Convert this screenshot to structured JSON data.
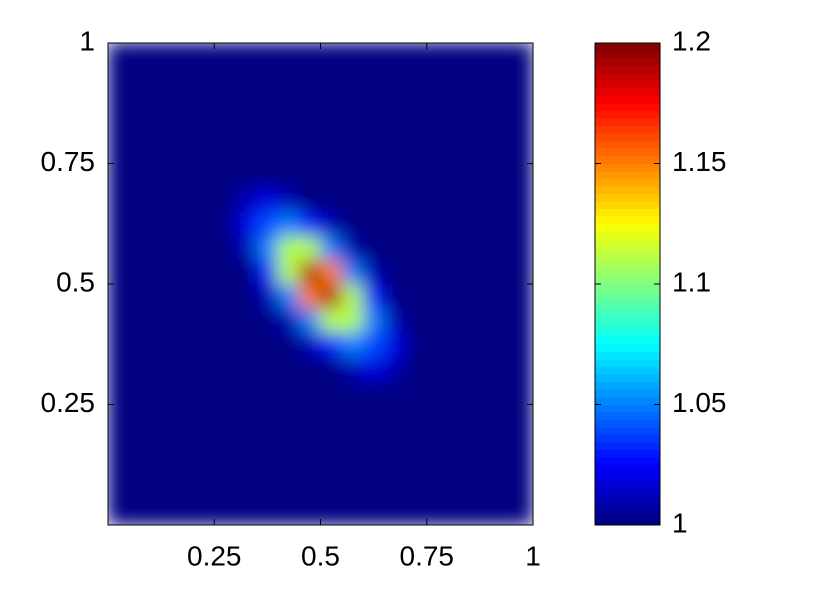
{
  "chart_data": {
    "type": "heatmap",
    "colormap": "jet",
    "xlim": [
      0,
      1
    ],
    "ylim": [
      0,
      1
    ],
    "clim": [
      1,
      1.2
    ],
    "xticks": [
      0.25,
      0.5,
      0.75,
      1
    ],
    "yticks": [
      0.25,
      0.5,
      0.75,
      1
    ],
    "cticks": [
      1,
      1.05,
      1.1,
      1.15,
      1.2
    ],
    "x": [
      0.025,
      0.075,
      0.125,
      0.175,
      0.225,
      0.275,
      0.325,
      0.375,
      0.425,
      0.475,
      0.525,
      0.575,
      0.625,
      0.675,
      0.725,
      0.775,
      0.825,
      0.875,
      0.925,
      0.975
    ],
    "y": [
      0.025,
      0.075,
      0.125,
      0.175,
      0.225,
      0.275,
      0.325,
      0.375,
      0.425,
      0.475,
      0.525,
      0.575,
      0.625,
      0.675,
      0.725,
      0.775,
      0.825,
      0.875,
      0.925,
      0.975
    ],
    "z": [
      [
        1,
        1,
        1,
        1,
        1,
        1,
        1,
        1,
        1,
        1,
        1,
        1,
        1,
        1,
        1,
        1,
        1,
        1,
        1,
        1
      ],
      [
        1,
        1,
        1,
        1,
        1,
        1,
        1,
        1,
        1,
        1,
        1,
        1,
        1,
        1,
        1,
        1,
        1,
        1,
        1,
        1
      ],
      [
        1,
        1,
        1,
        1,
        1,
        1,
        1,
        1,
        1,
        1,
        1,
        1,
        1,
        1,
        1,
        1,
        1,
        1,
        1,
        1
      ],
      [
        1,
        1,
        1,
        1,
        1,
        1,
        1,
        1,
        1,
        1,
        1,
        1,
        1,
        1,
        1,
        1,
        1,
        1,
        1,
        1
      ],
      [
        1,
        1,
        1,
        1,
        1,
        1,
        1,
        1,
        1,
        1,
        1,
        1,
        1,
        1,
        1,
        1,
        1,
        1,
        1,
        1
      ],
      [
        1,
        1,
        1,
        1,
        1,
        1,
        1,
        1,
        1,
        1,
        1,
        1,
        1,
        1,
        1,
        1,
        1,
        1,
        1,
        1
      ],
      [
        1,
        1,
        1,
        1,
        1,
        1,
        1,
        1,
        1,
        1,
        1,
        1.01,
        1.02,
        1.01,
        1,
        1,
        1,
        1,
        1,
        1
      ],
      [
        1,
        1,
        1,
        1,
        1,
        1,
        1,
        1,
        1,
        1.01,
        1.03,
        1.05,
        1.04,
        1.02,
        1,
        1,
        1,
        1,
        1,
        1
      ],
      [
        1,
        1,
        1,
        1,
        1,
        1,
        1,
        1,
        1.01,
        1.05,
        1.11,
        1.11,
        1.05,
        1.01,
        1,
        1,
        1,
        1,
        1,
        1
      ],
      [
        1,
        1,
        1,
        1,
        1,
        1,
        1,
        1.01,
        1.05,
        1.15,
        1.19,
        1.11,
        1.03,
        1,
        1,
        1,
        1,
        1,
        1,
        1
      ],
      [
        1,
        1,
        1,
        1,
        1,
        1,
        1,
        1.03,
        1.11,
        1.19,
        1.15,
        1.05,
        1.01,
        1,
        1,
        1,
        1,
        1,
        1,
        1
      ],
      [
        1,
        1,
        1,
        1,
        1,
        1,
        1.01,
        1.05,
        1.11,
        1.11,
        1.05,
        1.01,
        1,
        1,
        1,
        1,
        1,
        1,
        1,
        1
      ],
      [
        1,
        1,
        1,
        1,
        1,
        1,
        1.02,
        1.04,
        1.05,
        1.03,
        1.01,
        1,
        1,
        1,
        1,
        1,
        1,
        1,
        1,
        1
      ],
      [
        1,
        1,
        1,
        1,
        1,
        1,
        1.01,
        1.02,
        1.01,
        1,
        1,
        1,
        1,
        1,
        1,
        1,
        1,
        1,
        1,
        1
      ],
      [
        1,
        1,
        1,
        1,
        1,
        1,
        1,
        1,
        1,
        1,
        1,
        1,
        1,
        1,
        1,
        1,
        1,
        1,
        1,
        1
      ],
      [
        1,
        1,
        1,
        1,
        1,
        1,
        1,
        1,
        1,
        1,
        1,
        1,
        1,
        1,
        1,
        1,
        1,
        1,
        1,
        1
      ],
      [
        1,
        1,
        1,
        1,
        1,
        1,
        1,
        1,
        1,
        1,
        1,
        1,
        1,
        1,
        1,
        1,
        1,
        1,
        1,
        1
      ],
      [
        1,
        1,
        1,
        1,
        1,
        1,
        1,
        1,
        1,
        1,
        1,
        1,
        1,
        1,
        1,
        1,
        1,
        1,
        1,
        1
      ],
      [
        1,
        1,
        1,
        1,
        1,
        1,
        1,
        1,
        1,
        1,
        1,
        1,
        1,
        1,
        1,
        1,
        1,
        1,
        1,
        1
      ],
      [
        1,
        1,
        1,
        1,
        1,
        1,
        1,
        1,
        1,
        1,
        1,
        1,
        1,
        1,
        1,
        1,
        1,
        1,
        1,
        1
      ]
    ]
  }
}
